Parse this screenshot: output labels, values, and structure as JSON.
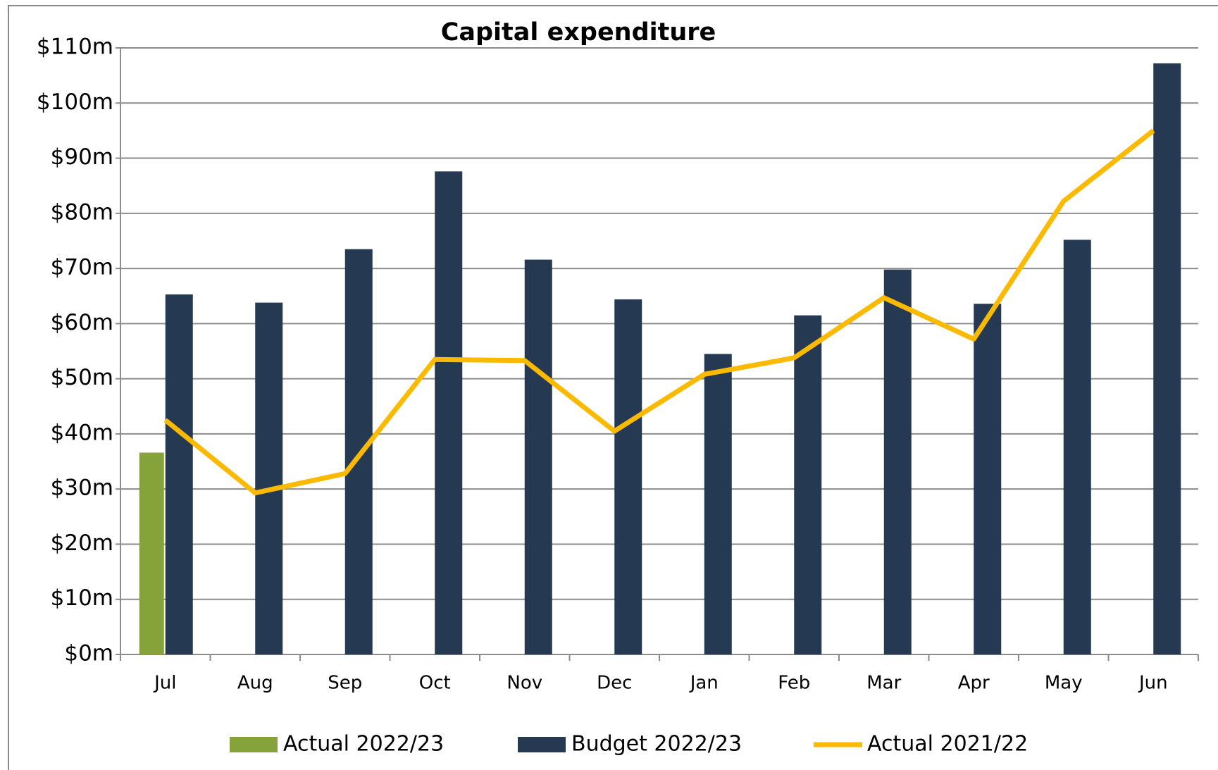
{
  "chart_data": {
    "type": "bar",
    "title": "Capital expenditure",
    "categories": [
      "Jul",
      "Aug",
      "Sep",
      "Oct",
      "Nov",
      "Dec",
      "Jan",
      "Feb",
      "Mar",
      "Apr",
      "May",
      "Jun"
    ],
    "series": [
      {
        "name": "Actual 2022/23",
        "type": "bar",
        "color": "#86a23a",
        "values": [
          36.6,
          null,
          null,
          null,
          null,
          null,
          null,
          null,
          null,
          null,
          null,
          null
        ]
      },
      {
        "name": "Budget 2022/23",
        "type": "bar",
        "color": "#253a52",
        "values": [
          65.3,
          63.8,
          73.5,
          87.6,
          71.6,
          64.4,
          54.5,
          61.5,
          69.8,
          63.6,
          75.2,
          107.2
        ]
      },
      {
        "name": "Actual 2021/22",
        "type": "line",
        "color": "#fbba00",
        "values": [
          42.5,
          29.3,
          32.8,
          53.5,
          53.3,
          40.5,
          50.8,
          53.8,
          64.7,
          57.2,
          82.2,
          95.0
        ]
      }
    ],
    "ylim": [
      0,
      110
    ],
    "yticks": [
      {
        "value": 0,
        "label": "$0m"
      },
      {
        "value": 10,
        "label": "$10m"
      },
      {
        "value": 20,
        "label": "$20m"
      },
      {
        "value": 30,
        "label": "$30m"
      },
      {
        "value": 40,
        "label": "$40m"
      },
      {
        "value": 50,
        "label": "$50m"
      },
      {
        "value": 60,
        "label": "$60m"
      },
      {
        "value": 70,
        "label": "$70m"
      },
      {
        "value": 80,
        "label": "$80m"
      },
      {
        "value": 90,
        "label": "$90m"
      },
      {
        "value": 100,
        "label": "$100m"
      },
      {
        "value": 110,
        "label": "$110m"
      }
    ],
    "grid": true,
    "legend": "bottom"
  }
}
